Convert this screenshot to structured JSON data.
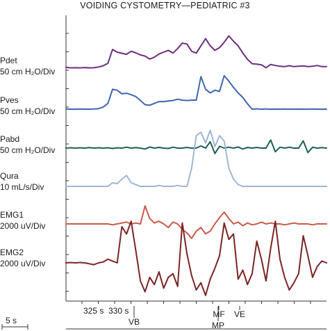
{
  "chart_data": {
    "type": "line",
    "title": "VOIDING CYSTOMETRY—PEDIATRIC #3",
    "time_scale_label": "5 s",
    "time_ticks": [
      "325 s",
      "330 s"
    ],
    "event_markers": [
      "VB",
      "MF",
      "MP",
      "VE"
    ],
    "grid": false,
    "legend": "none",
    "series": [
      {
        "name": "Pdet",
        "label": "Pdet",
        "scale": "50 cm H₂O/Div",
        "color": "#6b2f7e",
        "y": [
          0.16,
          0.13,
          0.14,
          0.13,
          0.15,
          0.13,
          0.14,
          0.18,
          0.25,
          0.38,
          1.15,
          1.0,
          0.94,
          0.88,
          1.05,
          0.96,
          0.85,
          0.78,
          0.62,
          0.72,
          0.9,
          1.0,
          1.1,
          0.95,
          1.2,
          1.5,
          1.45,
          1.05,
          0.95,
          1.35,
          1.75,
          1.35,
          1.1,
          1.25,
          1.55,
          1.9,
          1.6,
          1.35,
          0.95,
          0.6,
          0.36,
          0.34,
          0.3,
          0.14,
          0.32,
          0.26,
          0.22,
          0.2,
          0.25,
          0.2,
          0.22,
          0.24,
          0.2,
          0.22,
          0.26,
          0.2,
          0.2
        ]
      },
      {
        "name": "Pves",
        "label": "Pves",
        "scale": "50 cm H₂O/Div",
        "color": "#3e66b2",
        "y": [
          0.01,
          0.0,
          0.0,
          0.01,
          0.0,
          0.0,
          0.01,
          0.03,
          0.12,
          0.32,
          1.1,
          1.05,
          0.85,
          0.88,
          0.8,
          0.7,
          0.48,
          0.25,
          0.22,
          0.32,
          0.42,
          0.42,
          0.45,
          0.48,
          0.55,
          0.5,
          0.48,
          0.5,
          0.5,
          1.8,
          1.1,
          0.9,
          1.05,
          0.98,
          1.85,
          1.55,
          1.2,
          0.9,
          0.65,
          0.3,
          0.0,
          0.02,
          0.0,
          0.01,
          0.0,
          0.0,
          0.0,
          0.01,
          0.0,
          0.0,
          0.0,
          0.0,
          0.0,
          0.01,
          0.0,
          0.0,
          0.0
        ]
      },
      {
        "name": "Pabd",
        "label": "Pabd",
        "scale": "50 cm H₂O/Div",
        "color": "#1d5e5a",
        "y": [
          0.0,
          0.02,
          0.0,
          0.02,
          0.0,
          0.03,
          0.0,
          0.02,
          0.0,
          0.02,
          -0.02,
          0.02,
          0.0,
          0.05,
          0.0,
          0.03,
          0.0,
          -0.05,
          0.06,
          0.0,
          0.04,
          0.0,
          -0.02,
          0.05,
          0.0,
          0.0,
          0.04,
          0.0,
          0.0,
          0.12,
          0.0,
          0.35,
          -0.3,
          0.1,
          0.0,
          0.05,
          0.0,
          0.06,
          -0.05,
          0.04,
          0.0,
          0.04,
          0.0,
          0.0,
          0.45,
          -0.2,
          0.05,
          0.0,
          0.05,
          0.0,
          0.0,
          0.4,
          -0.25,
          0.05,
          0.0,
          0.03,
          0.0
        ]
      },
      {
        "name": "Qura",
        "label": "Qura",
        "scale": "10 mL/s/Div",
        "color": "#9fb6d6",
        "y": [
          0.0,
          0.0,
          0.0,
          0.0,
          0.0,
          0.0,
          0.0,
          0.0,
          0.0,
          0.0,
          0.2,
          0.15,
          0.4,
          0.6,
          0.2,
          0.1,
          0.0,
          0.0,
          0.0,
          0.0,
          0.05,
          0.0,
          0.0,
          0.0,
          0.05,
          0.0,
          0.0,
          1.0,
          2.8,
          3.0,
          2.4,
          3.1,
          2.2,
          2.8,
          2.5,
          1.0,
          0.4,
          0.1,
          0.0,
          0.0,
          0.0,
          0.0,
          0.0,
          0.0,
          0.0,
          0.0,
          0.0,
          0.0,
          0.0,
          0.0,
          0.0,
          0.0,
          0.0,
          0.0,
          0.0,
          0.0,
          0.0
        ]
      },
      {
        "name": "EMG1",
        "label": "EMG1",
        "scale": "2000 uV/Div",
        "color": "#c95a48",
        "y": [
          0.0,
          0.0,
          0.0,
          0.0,
          0.0,
          0.0,
          0.0,
          0.0,
          0.0,
          0.0,
          -0.05,
          0.0,
          0.05,
          0.1,
          0.0,
          0.05,
          0.0,
          1.0,
          0.3,
          0.05,
          0.15,
          0.0,
          -0.2,
          0.1,
          0.0,
          -0.3,
          -0.5,
          -0.8,
          -0.4,
          -0.2,
          -0.55,
          -0.4,
          0.0,
          0.35,
          0.65,
          0.3,
          0.0,
          0.1,
          -0.1,
          0.05,
          -0.05,
          0.0,
          0.1,
          0.0,
          0.05,
          0.0,
          0.0,
          -0.05,
          0.0,
          0.05,
          0.0,
          0.0,
          0.0,
          -0.05,
          0.0,
          0.0,
          0.0
        ]
      },
      {
        "name": "EMG2",
        "label": "EMG2",
        "scale": "2000 uV/Div",
        "color": "#7a2424",
        "y": [
          0.0,
          0.02,
          0.0,
          0.02,
          0.0,
          -0.05,
          -0.1,
          0.0,
          0.05,
          0.2,
          0.1,
          0.0,
          2.0,
          1.6,
          2.3,
          0.7,
          -1.0,
          -1.6,
          -0.8,
          -1.2,
          -0.5,
          -1.4,
          -0.8,
          -0.6,
          -1.3,
          2.2,
          0.5,
          -0.7,
          -1.5,
          -1.1,
          -1.8,
          -0.9,
          -0.3,
          0.4,
          2.2,
          1.3,
          1.6,
          -0.9,
          -0.4,
          -1.2,
          -0.6,
          1.2,
          0.2,
          -1.0,
          0.8,
          2.3,
          0.2,
          -0.8,
          -1.5,
          -1.1,
          -0.6,
          1.5,
          0.4,
          -0.8,
          -0.2,
          0.1,
          0.0
        ]
      }
    ]
  }
}
